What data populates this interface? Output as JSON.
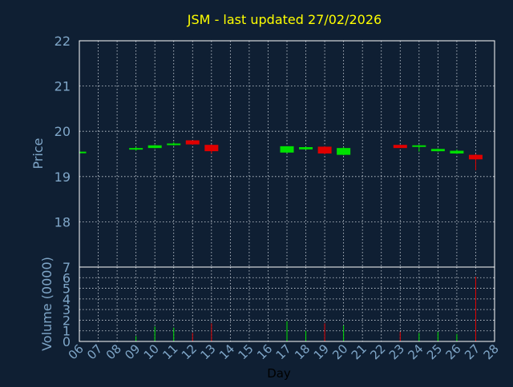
{
  "chart_data": {
    "type": "candlestick",
    "title": "JSM - last updated 27/02/2026",
    "xlabel": "Day",
    "x_ticks": [
      "06",
      "07",
      "08",
      "09",
      "10",
      "11",
      "12",
      "13",
      "14",
      "15",
      "16",
      "17",
      "18",
      "19",
      "20",
      "21",
      "22",
      "23",
      "24",
      "25",
      "26",
      "27",
      "28"
    ],
    "price_panel": {
      "ylabel": "Price",
      "ylim": [
        17,
        22
      ],
      "y_ticks": [
        "18",
        "19",
        "20",
        "21",
        "22"
      ],
      "candles": [
        {
          "day": "06",
          "open": 19.52,
          "high": 19.55,
          "low": 19.5,
          "close": 19.55
        },
        {
          "day": "09",
          "open": 19.61,
          "high": 19.66,
          "low": 19.57,
          "close": 19.63
        },
        {
          "day": "10",
          "open": 19.63,
          "high": 19.7,
          "low": 19.62,
          "close": 19.69
        },
        {
          "day": "11",
          "open": 19.7,
          "high": 19.76,
          "low": 19.68,
          "close": 19.73
        },
        {
          "day": "12",
          "open": 19.8,
          "high": 19.8,
          "low": 19.7,
          "close": 19.71
        },
        {
          "day": "13",
          "open": 19.7,
          "high": 19.71,
          "low": 19.51,
          "close": 19.56
        },
        {
          "day": "17",
          "open": 19.53,
          "high": 19.67,
          "low": 19.52,
          "close": 19.67
        },
        {
          "day": "18",
          "open": 19.6,
          "high": 19.66,
          "low": 19.59,
          "close": 19.65
        },
        {
          "day": "19",
          "open": 19.66,
          "high": 19.67,
          "low": 19.49,
          "close": 19.51
        },
        {
          "day": "20",
          "open": 19.48,
          "high": 19.65,
          "low": 19.47,
          "close": 19.63
        },
        {
          "day": "23",
          "open": 19.7,
          "high": 19.7,
          "low": 19.63,
          "close": 19.63
        },
        {
          "day": "24",
          "open": 19.67,
          "high": 19.7,
          "low": 19.55,
          "close": 19.69
        },
        {
          "day": "25",
          "open": 19.56,
          "high": 19.62,
          "low": 19.55,
          "close": 19.61
        },
        {
          "day": "26",
          "open": 19.51,
          "high": 19.6,
          "low": 19.5,
          "close": 19.57
        },
        {
          "day": "27",
          "open": 19.48,
          "high": 19.5,
          "low": 19.14,
          "close": 19.38
        }
      ]
    },
    "volume_panel": {
      "ylabel": "Volume (0000)",
      "ylim": [
        0,
        7
      ],
      "y_ticks": [
        "0",
        "1",
        "2",
        "3",
        "4",
        "5",
        "6",
        "7"
      ],
      "bars": [
        {
          "day": "06",
          "value": 0.1
        },
        {
          "day": "09",
          "value": 0.5
        },
        {
          "day": "10",
          "value": 1.4
        },
        {
          "day": "11",
          "value": 1.3
        },
        {
          "day": "12",
          "value": 0.8
        },
        {
          "day": "13",
          "value": 1.7
        },
        {
          "day": "17",
          "value": 1.9
        },
        {
          "day": "18",
          "value": 1.0
        },
        {
          "day": "19",
          "value": 1.7
        },
        {
          "day": "20",
          "value": 1.5
        },
        {
          "day": "23",
          "value": 0.9
        },
        {
          "day": "24",
          "value": 0.8
        },
        {
          "day": "25",
          "value": 0.9
        },
        {
          "day": "26",
          "value": 0.7
        },
        {
          "day": "27",
          "value": 6.1
        }
      ]
    },
    "grid": true,
    "colors": {
      "background": "#0f1f33",
      "axis": "#ffffff",
      "grid": "#cfd6de",
      "up": "#00e000",
      "down": "#e00000",
      "title": "#ffff00",
      "label": "#7fa6c8",
      "xlabel": "#000000"
    }
  }
}
